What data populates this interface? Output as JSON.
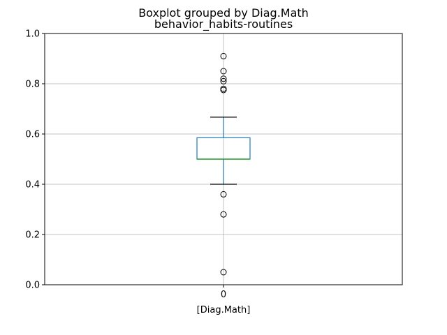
{
  "chart_data": {
    "type": "boxplot",
    "title": "Boxplot grouped by Diag.Math",
    "subtitle": "behavior_habits-routines",
    "xlabel": "[Diag.Math]",
    "ylabel": "",
    "ylim": [
      0,
      1
    ],
    "yticks": [
      "0.0",
      "0.2",
      "0.4",
      "0.6",
      "0.8",
      "1.0"
    ],
    "grid": true,
    "categories": [
      "0"
    ],
    "boxes": [
      {
        "category": "0",
        "whisker_low": 0.4,
        "q1": 0.5,
        "median": 0.5,
        "q3": 0.585,
        "whisker_high": 0.667,
        "outliers": [
          0.91,
          0.85,
          0.82,
          0.81,
          0.78,
          0.775,
          0.36,
          0.28,
          0.05
        ]
      }
    ],
    "colors": {
      "box": "#1f77b4",
      "median": "#2ca02c",
      "whisker_cap": "#000000",
      "grid": "#b0b0b0",
      "outlier": "#000000"
    }
  }
}
